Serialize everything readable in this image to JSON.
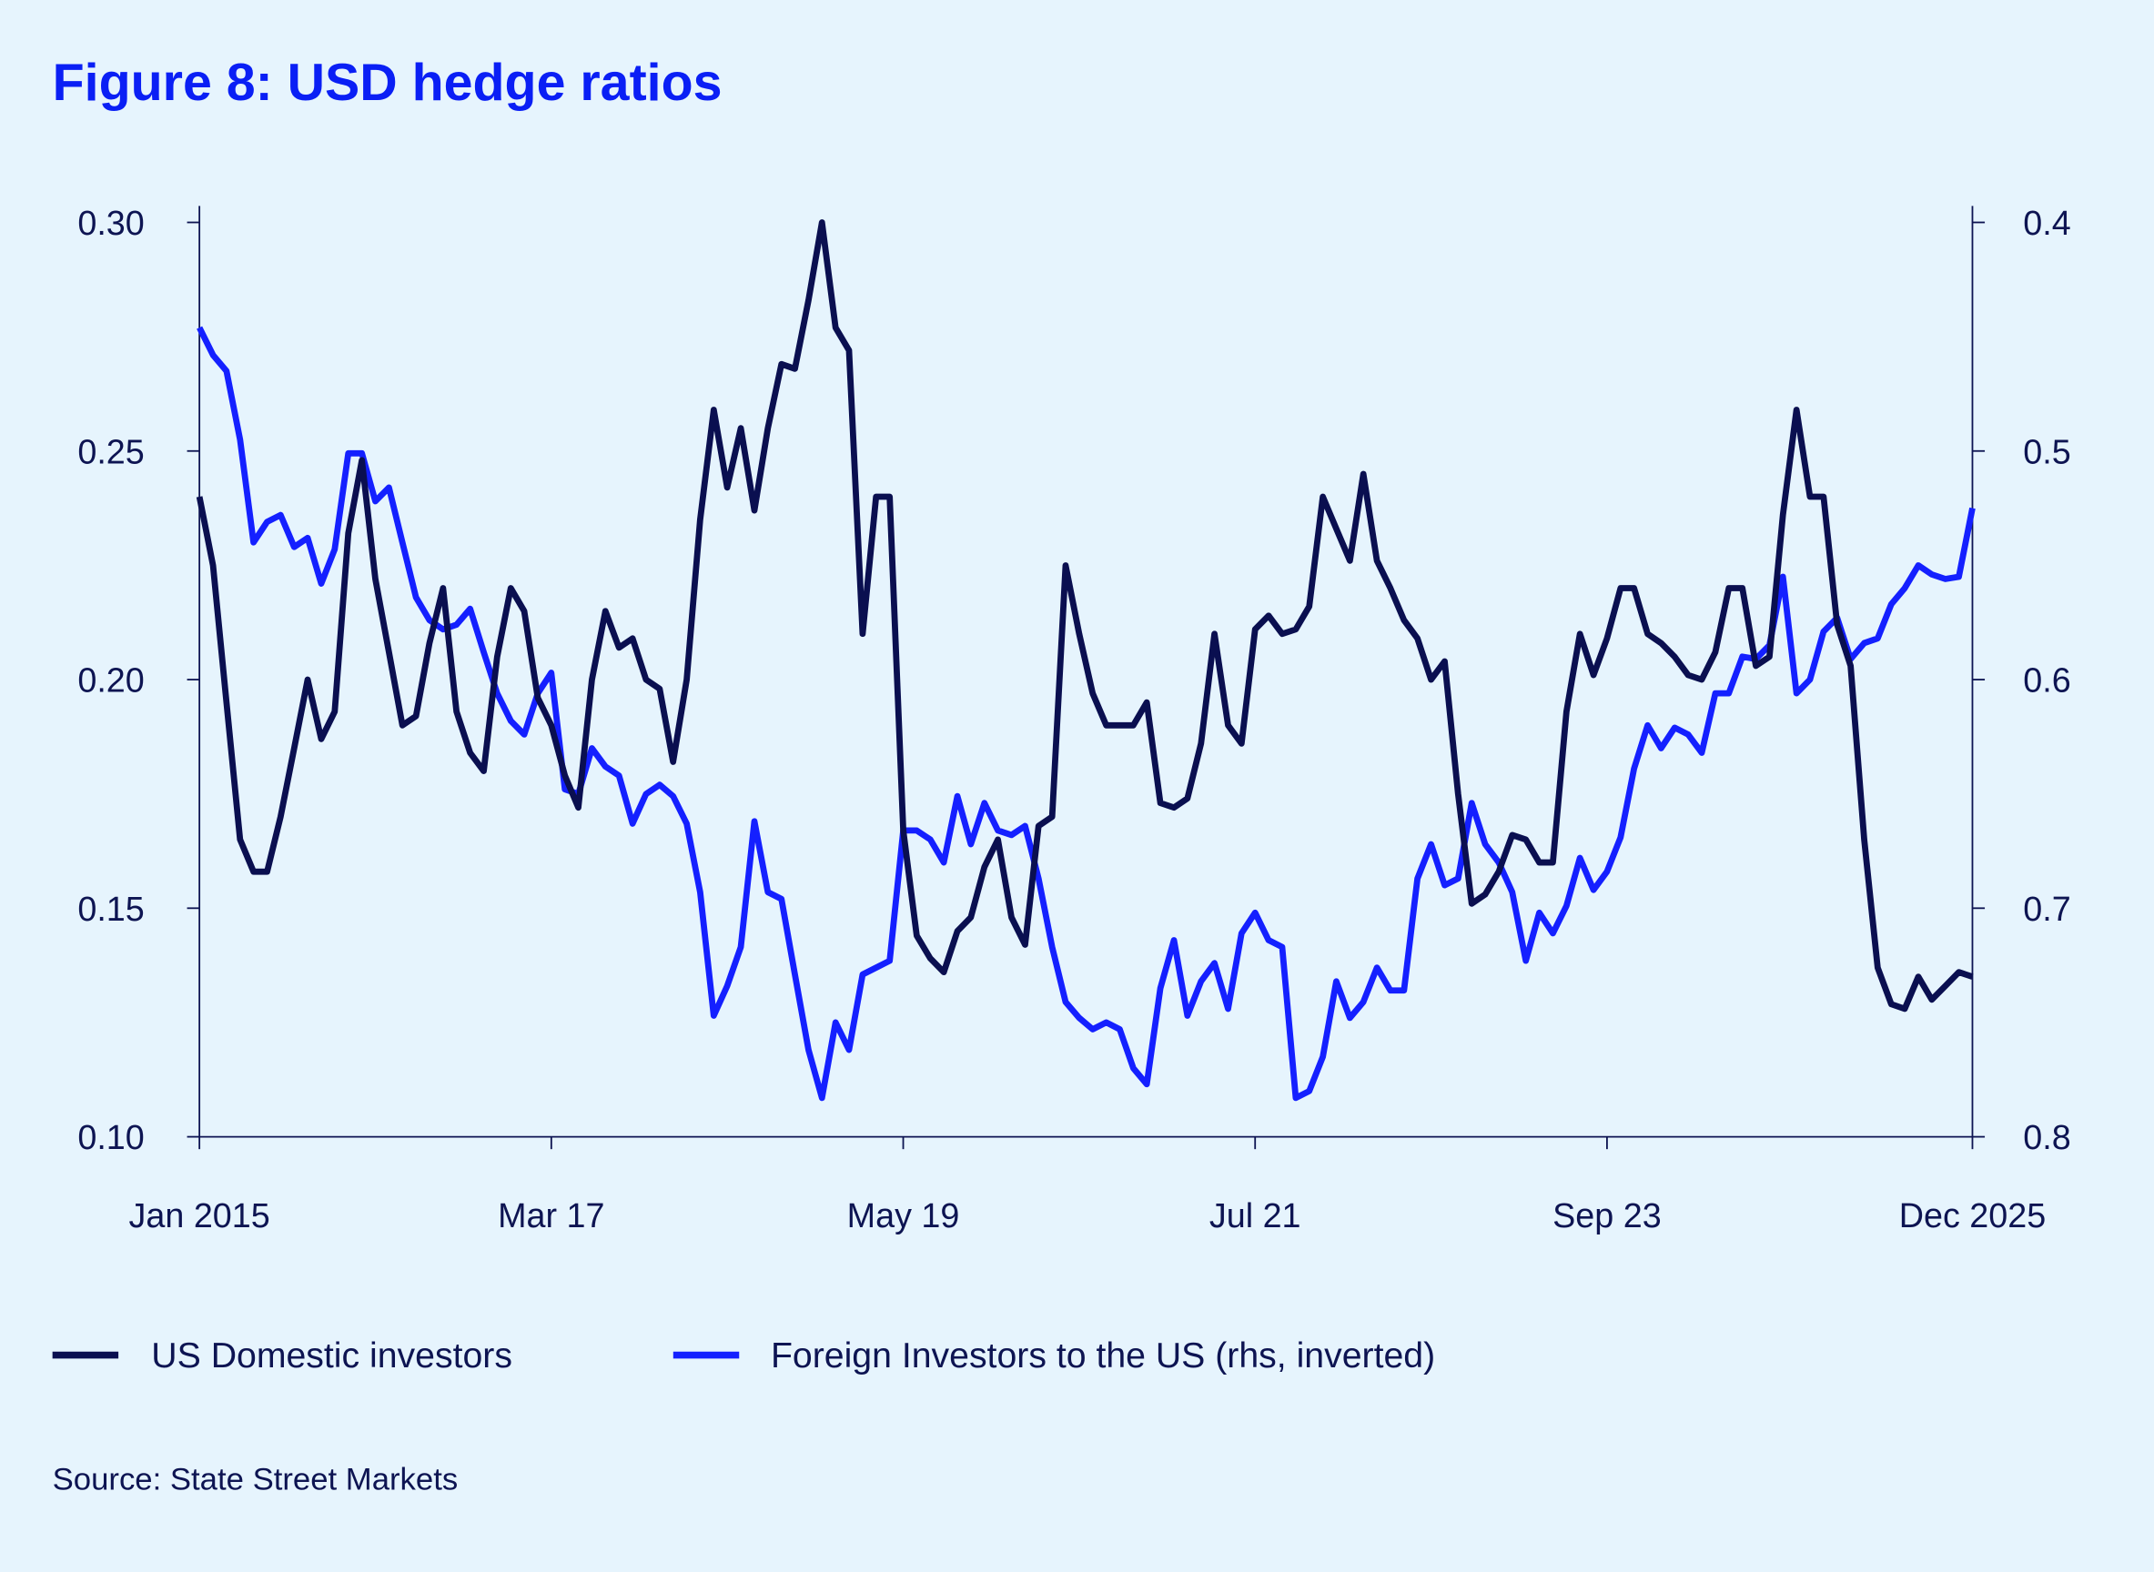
{
  "title": "Figure 8: USD hedge ratios",
  "source": "Source: State Street Markets",
  "colors": {
    "background": "#e6f4fd",
    "title": "#0a1ff5",
    "us_domestic": "#0a0f50",
    "foreign": "#1420ff",
    "axis": "#0d1452"
  },
  "chart_data": {
    "type": "line",
    "title": "Figure 8: USD hedge ratios",
    "xlabel": "",
    "ylabel": "",
    "x_ticks": [
      "Jan 2015",
      "Mar 17",
      "May 19",
      "Jul 21",
      "Sep 23",
      "Dec 2025"
    ],
    "x_tick_dates": [
      "2015-01",
      "2017-03",
      "2019-05",
      "2021-07",
      "2023-09",
      "2025-12"
    ],
    "xlim": [
      "2015-01",
      "2025-12"
    ],
    "y_left": {
      "ticks": [
        "0.30",
        "0.25",
        "0.20",
        "0.15",
        "0.10"
      ],
      "ylim": [
        0.1,
        0.3
      ]
    },
    "y_right": {
      "ticks": [
        "0.4",
        "0.5",
        "0.6",
        "0.7",
        "0.8"
      ],
      "ylim": [
        0.4,
        0.8
      ],
      "inverted": true
    },
    "grid": false,
    "legend": "bottom",
    "x": [
      "2015-01",
      "2015-02",
      "2015-03",
      "2015-04",
      "2015-05",
      "2015-06",
      "2015-07",
      "2015-08",
      "2015-09",
      "2015-10",
      "2015-11",
      "2015-12",
      "2016-01",
      "2016-02",
      "2016-03",
      "2016-04",
      "2016-05",
      "2016-06",
      "2016-07",
      "2016-08",
      "2016-09",
      "2016-10",
      "2016-11",
      "2016-12",
      "2017-01",
      "2017-02",
      "2017-03",
      "2017-04",
      "2017-05",
      "2017-06",
      "2017-07",
      "2017-08",
      "2017-09",
      "2017-10",
      "2017-11",
      "2017-12",
      "2018-01",
      "2018-02",
      "2018-03",
      "2018-04",
      "2018-05",
      "2018-06",
      "2018-07",
      "2018-08",
      "2018-09",
      "2018-10",
      "2018-11",
      "2018-12",
      "2019-01",
      "2019-02",
      "2019-03",
      "2019-04",
      "2019-05",
      "2019-06",
      "2019-07",
      "2019-08",
      "2019-09",
      "2019-10",
      "2019-11",
      "2019-12",
      "2020-01",
      "2020-02",
      "2020-03",
      "2020-04",
      "2020-05",
      "2020-06",
      "2020-07",
      "2020-08",
      "2020-09",
      "2020-10",
      "2020-11",
      "2020-12",
      "2021-01",
      "2021-02",
      "2021-03",
      "2021-04",
      "2021-05",
      "2021-06",
      "2021-07",
      "2021-08",
      "2021-09",
      "2021-10",
      "2021-11",
      "2021-12",
      "2022-01",
      "2022-02",
      "2022-03",
      "2022-04",
      "2022-05",
      "2022-06",
      "2022-07",
      "2022-08",
      "2022-09",
      "2022-10",
      "2022-11",
      "2022-12",
      "2023-01",
      "2023-02",
      "2023-03",
      "2023-04",
      "2023-05",
      "2023-06",
      "2023-07",
      "2023-08",
      "2023-09",
      "2023-10",
      "2023-11",
      "2023-12",
      "2024-01",
      "2024-02",
      "2024-03",
      "2024-04",
      "2024-05",
      "2024-06",
      "2024-07",
      "2024-08",
      "2024-09",
      "2024-10",
      "2024-11",
      "2024-12",
      "2025-01",
      "2025-02",
      "2025-03",
      "2025-04",
      "2025-05",
      "2025-06",
      "2025-07",
      "2025-08",
      "2025-09",
      "2025-10",
      "2025-11",
      "2025-12"
    ],
    "series": [
      {
        "name": "US Domestic investors",
        "axis": "left",
        "values": [
          0.24,
          0.225,
          0.195,
          0.165,
          0.158,
          0.158,
          0.17,
          0.185,
          0.2,
          0.187,
          0.193,
          0.232,
          0.248,
          0.222,
          0.206,
          0.19,
          0.192,
          0.208,
          0.22,
          0.193,
          0.184,
          0.18,
          0.205,
          0.22,
          0.215,
          0.196,
          0.19,
          0.179,
          0.172,
          0.2,
          0.215,
          0.207,
          0.209,
          0.2,
          0.198,
          0.182,
          0.2,
          0.235,
          0.259,
          0.242,
          0.255,
          0.237,
          0.255,
          0.269,
          0.268,
          0.283,
          0.3,
          0.277,
          0.272,
          0.21,
          0.24,
          0.24,
          0.167,
          0.144,
          0.139,
          0.136,
          0.145,
          0.148,
          0.159,
          0.165,
          0.148,
          0.142,
          0.168,
          0.17,
          0.225,
          0.21,
          0.197,
          0.19,
          0.19,
          0.19,
          0.195,
          0.173,
          0.172,
          0.174,
          0.186,
          0.21,
          0.19,
          0.186,
          0.211,
          0.214,
          0.21,
          0.211,
          0.216,
          0.24,
          0.233,
          0.226,
          0.245,
          0.226,
          0.22,
          0.213,
          0.209,
          0.2,
          0.204,
          0.175,
          0.151,
          0.153,
          0.158,
          0.166,
          0.165,
          0.16,
          0.16,
          0.193,
          0.21,
          0.201,
          0.209,
          0.22,
          0.22,
          0.21,
          0.208,
          0.205,
          0.201,
          0.2,
          0.206,
          0.22,
          0.22,
          0.203,
          0.205,
          0.236,
          0.259,
          0.24,
          0.24,
          0.212,
          0.203,
          0.165,
          0.137,
          0.129,
          0.128,
          0.135,
          0.13,
          0.133,
          0.136,
          0.135
        ]
      },
      {
        "name": "Foreign Investors to the US (rhs, inverted)",
        "axis": "right",
        "values": [
          0.446,
          0.458,
          0.465,
          0.495,
          0.54,
          0.531,
          0.528,
          0.542,
          0.538,
          0.558,
          0.543,
          0.501,
          0.501,
          0.522,
          0.516,
          0.54,
          0.564,
          0.574,
          0.578,
          0.576,
          0.569,
          0.588,
          0.606,
          0.618,
          0.624,
          0.606,
          0.597,
          0.648,
          0.65,
          0.63,
          0.638,
          0.642,
          0.663,
          0.65,
          0.646,
          0.651,
          0.663,
          0.693,
          0.747,
          0.734,
          0.717,
          0.662,
          0.693,
          0.696,
          0.729,
          0.762,
          0.783,
          0.75,
          0.762,
          0.729,
          0.726,
          0.723,
          0.666,
          0.666,
          0.67,
          0.68,
          0.651,
          0.672,
          0.654,
          0.666,
          0.668,
          0.664,
          0.687,
          0.717,
          0.741,
          0.748,
          0.753,
          0.75,
          0.753,
          0.77,
          0.777,
          0.735,
          0.714,
          0.747,
          0.732,
          0.724,
          0.744,
          0.711,
          0.702,
          0.714,
          0.717,
          0.783,
          0.78,
          0.765,
          0.732,
          0.748,
          0.741,
          0.726,
          0.736,
          0.736,
          0.687,
          0.672,
          0.69,
          0.687,
          0.654,
          0.672,
          0.68,
          0.693,
          0.723,
          0.702,
          0.711,
          0.699,
          0.678,
          0.692,
          0.684,
          0.669,
          0.639,
          0.62,
          0.63,
          0.621,
          0.624,
          0.632,
          0.606,
          0.606,
          0.59,
          0.591,
          0.585,
          0.555,
          0.606,
          0.6,
          0.579,
          0.573,
          0.591,
          0.584,
          0.582,
          0.567,
          0.56,
          0.55,
          0.554,
          0.556,
          0.555,
          0.525
        ]
      }
    ]
  }
}
